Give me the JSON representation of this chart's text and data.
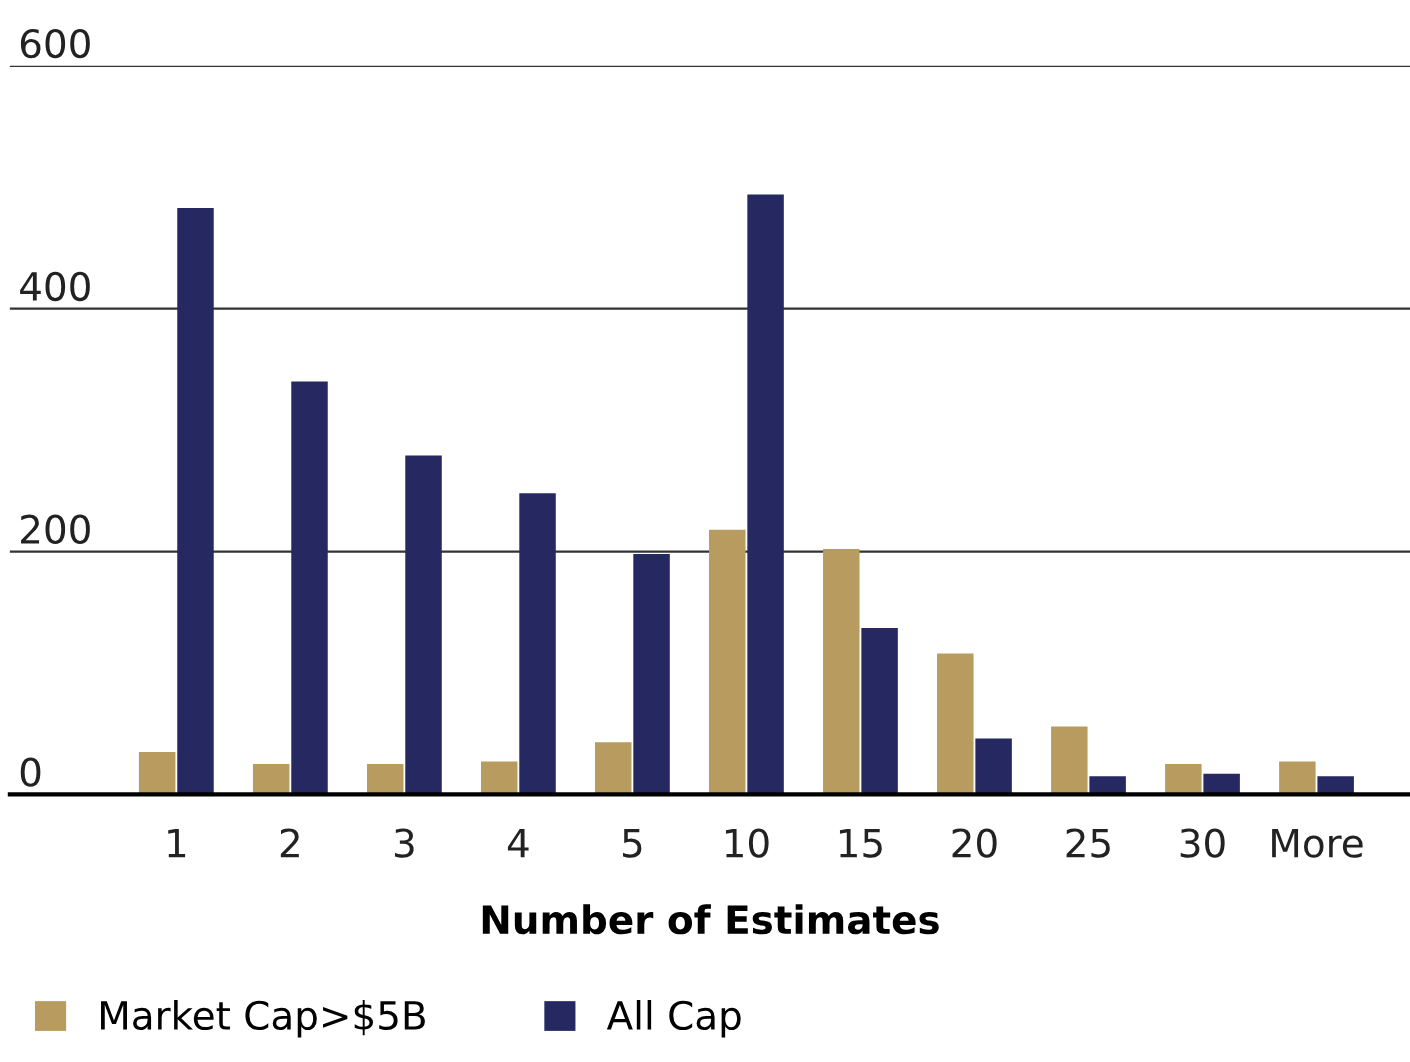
{
  "chart_data": {
    "type": "bar",
    "xlabel": "Number of Estimates",
    "categories": [
      "1",
      "2",
      "3",
      "4",
      "5",
      "10",
      "15",
      "20",
      "25",
      "30",
      "More"
    ],
    "series": [
      {
        "name": "Market Cap>$5B",
        "color": "#b89b5e",
        "values": [
          35,
          25,
          25,
          27,
          43,
          218,
          202,
          116,
          56,
          25,
          27
        ]
      },
      {
        "name": "All Cap",
        "color": "#262862",
        "values": [
          483,
          340,
          279,
          248,
          198,
          494,
          137,
          46,
          15,
          17,
          15
        ]
      }
    ],
    "ylim": [
      0,
      600
    ],
    "yticks": [
      0,
      200,
      400,
      600
    ],
    "grid": "y",
    "legend": "bottom"
  }
}
